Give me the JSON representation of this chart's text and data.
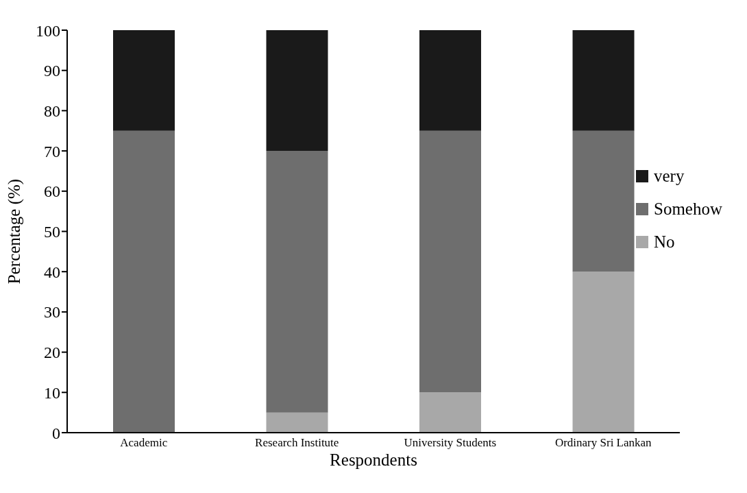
{
  "chart_data": {
    "type": "bar",
    "stacked": true,
    "xlabel": "Respondents",
    "ylabel": "Percentage (%)",
    "categories": [
      "Academic",
      "Research Institute",
      "University Students",
      "Ordinary Sri Lankan"
    ],
    "series": [
      {
        "name": "No",
        "color": "#a8a8a8",
        "values": [
          0,
          5,
          10,
          40
        ]
      },
      {
        "name": "Somehow",
        "color": "#6e6e6e",
        "values": [
          75,
          65,
          65,
          35
        ]
      },
      {
        "name": "very",
        "color": "#1a1a1a",
        "values": [
          25,
          30,
          25,
          25
        ]
      }
    ],
    "ylim": [
      0,
      100
    ],
    "yticks": [
      0,
      10,
      20,
      30,
      40,
      50,
      60,
      70,
      80,
      90,
      100
    ],
    "legend": "right",
    "grid": false
  }
}
